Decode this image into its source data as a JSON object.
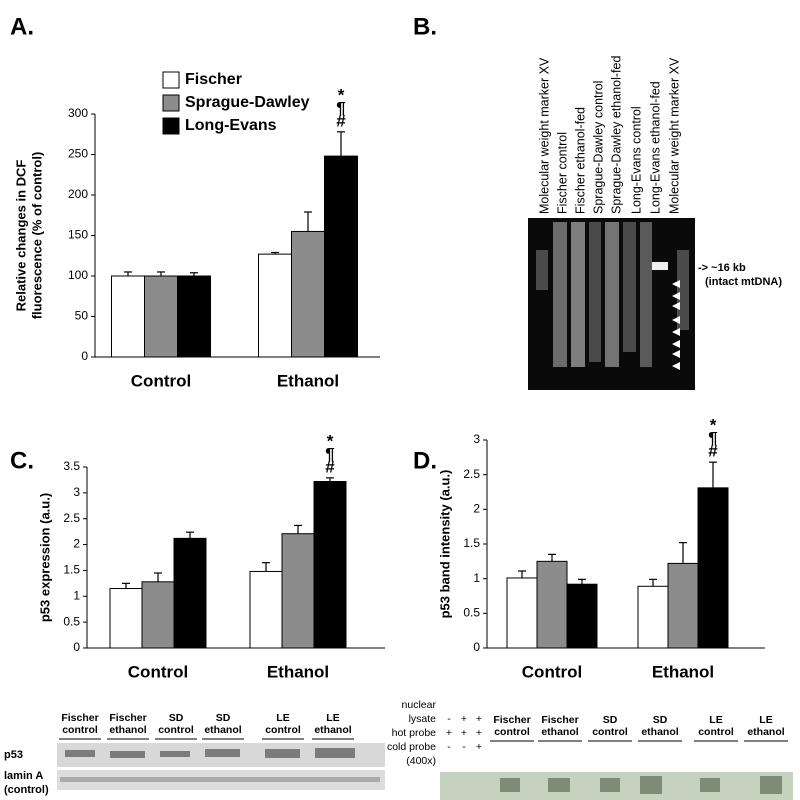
{
  "chart_data": [
    {
      "type": "bar",
      "panel_label": "A.",
      "y_label": [
        "Relative changes in DCF",
        "fluorescence (% of control)"
      ],
      "categories": [
        "Control",
        "Ethanol"
      ],
      "series": [
        {
          "name": "Fischer",
          "color": "#ffffff",
          "values": [
            100,
            127
          ],
          "errors": [
            5,
            2
          ]
        },
        {
          "name": "Sprague-Dawley",
          "color": "#8c8c8c",
          "values": [
            100,
            155
          ],
          "errors": [
            5,
            24
          ]
        },
        {
          "name": "Long-Evans",
          "color": "#000000",
          "values": [
            100,
            248
          ],
          "errors": [
            4,
            30
          ]
        }
      ],
      "ylim": [
        0,
        300
      ],
      "yticks": [
        0,
        50,
        100,
        150,
        200,
        250,
        300
      ],
      "legend": "upper-left",
      "annotations": [
        "*",
        "¶",
        "#"
      ]
    },
    {
      "type": "bar",
      "panel_label": "C.",
      "y_label": [
        "p53 expression (a.u.)"
      ],
      "categories": [
        "Control",
        "Ethanol"
      ],
      "series": [
        {
          "color": "#ffffff",
          "values": [
            1.15,
            1.48
          ],
          "errors": [
            0.1,
            0.17
          ]
        },
        {
          "color": "#8c8c8c",
          "values": [
            1.28,
            2.21
          ],
          "errors": [
            0.17,
            0.16
          ]
        },
        {
          "color": "#000000",
          "values": [
            2.12,
            3.22
          ],
          "errors": [
            0.12,
            0.07
          ]
        }
      ],
      "ylim": [
        0,
        3.5
      ],
      "yticks": [
        0,
        0.5,
        1,
        1.5,
        2,
        2.5,
        3,
        3.5
      ],
      "annotations": [
        "*",
        "¶",
        "#"
      ]
    },
    {
      "type": "bar",
      "panel_label": "D.",
      "y_label": [
        "p53 band intensity (a.u.)"
      ],
      "categories": [
        "Control",
        "Ethanol"
      ],
      "series": [
        {
          "color": "#ffffff",
          "values": [
            1.01,
            0.89
          ],
          "errors": [
            0.1,
            0.1
          ]
        },
        {
          "color": "#8c8c8c",
          "values": [
            1.25,
            1.22
          ],
          "errors": [
            0.1,
            0.3
          ]
        },
        {
          "color": "#000000",
          "values": [
            0.92,
            2.31
          ],
          "errors": [
            0.07,
            0.37
          ]
        }
      ],
      "ylim": [
        0,
        3
      ],
      "yticks": [
        0,
        0.5,
        1,
        1.5,
        2,
        2.5,
        3
      ],
      "annotations": [
        "*",
        "¶",
        "#"
      ]
    }
  ],
  "gel": {
    "panel_label": "B.",
    "lanes": [
      "Molecular weight marker XV",
      "Fischer control",
      "Fischer ethanol-fed",
      "Sprague-Dawley control",
      "Sprague-Dawley ethanol-fed",
      "Long-Evans control",
      "Long-Evans ethanol-fed",
      "Molecular weight marker XV"
    ],
    "annotation": [
      "-> ~16 kb",
      "(intact mtDNA)"
    ]
  },
  "blot_c": {
    "lanes": [
      [
        "Fischer",
        "control"
      ],
      [
        "Fischer",
        "ethanol"
      ],
      [
        "SD",
        "control"
      ],
      [
        "SD",
        "ethanol"
      ],
      [
        "LE",
        "control"
      ],
      [
        "LE",
        "ethanol"
      ]
    ],
    "rows": [
      [
        "p53"
      ],
      [
        "lamin A",
        "(control)"
      ]
    ]
  },
  "blot_d": {
    "conditions": [
      {
        "label": [
          "nuclear",
          "lysate"
        ],
        "signs": [
          "-",
          "+",
          "+"
        ]
      },
      {
        "label": [
          "hot probe"
        ],
        "signs": [
          "+",
          "+",
          "+"
        ]
      },
      {
        "label": [
          "cold probe",
          "(400x)"
        ],
        "signs": [
          "-",
          "-",
          "+"
        ]
      }
    ],
    "lanes": [
      [
        "Fischer",
        "control"
      ],
      [
        "Fischer",
        "ethanol"
      ],
      [
        "SD",
        "control"
      ],
      [
        "SD",
        "ethanol"
      ],
      [
        "LE",
        "control"
      ],
      [
        "LE",
        "ethanol"
      ]
    ]
  }
}
